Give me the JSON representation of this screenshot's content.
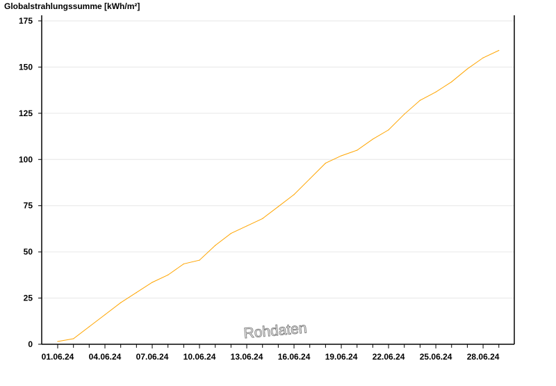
{
  "chart_data": {
    "type": "line",
    "title": "",
    "ylabel": "Globalstrahlungssumme [kWh/m²]",
    "xlabel": "",
    "ylim": [
      0,
      175
    ],
    "yticks": [
      "0",
      "25",
      "50",
      "75",
      "100",
      "125",
      "150",
      "175"
    ],
    "xticks": [
      "01.06.24",
      "04.06.24",
      "07.06.24",
      "10.06.24",
      "13.06.24",
      "16.06.24",
      "19.06.24",
      "22.06.24",
      "25.06.24",
      "28.06.24"
    ],
    "grid": true,
    "watermark": "Rohdaten",
    "line_color": "#FFA500",
    "x": [
      "01.06.24",
      "02.06.24",
      "03.06.24",
      "04.06.24",
      "05.06.24",
      "06.06.24",
      "07.06.24",
      "08.06.24",
      "09.06.24",
      "10.06.24",
      "11.06.24",
      "12.06.24",
      "13.06.24",
      "14.06.24",
      "15.06.24",
      "16.06.24",
      "17.06.24",
      "18.06.24",
      "19.06.24",
      "20.06.24",
      "21.06.24",
      "22.06.24",
      "23.06.24",
      "24.06.24",
      "25.06.24",
      "26.06.24",
      "27.06.24",
      "28.06.24",
      "29.06.24"
    ],
    "values": [
      1.5,
      3,
      9.5,
      16,
      22.5,
      28,
      33.5,
      37.5,
      43.5,
      45.5,
      53.5,
      60,
      64,
      68,
      74.5,
      81,
      89.5,
      98,
      102,
      105,
      111,
      116,
      124.5,
      132,
      136.5,
      142,
      149,
      155,
      159
    ]
  }
}
